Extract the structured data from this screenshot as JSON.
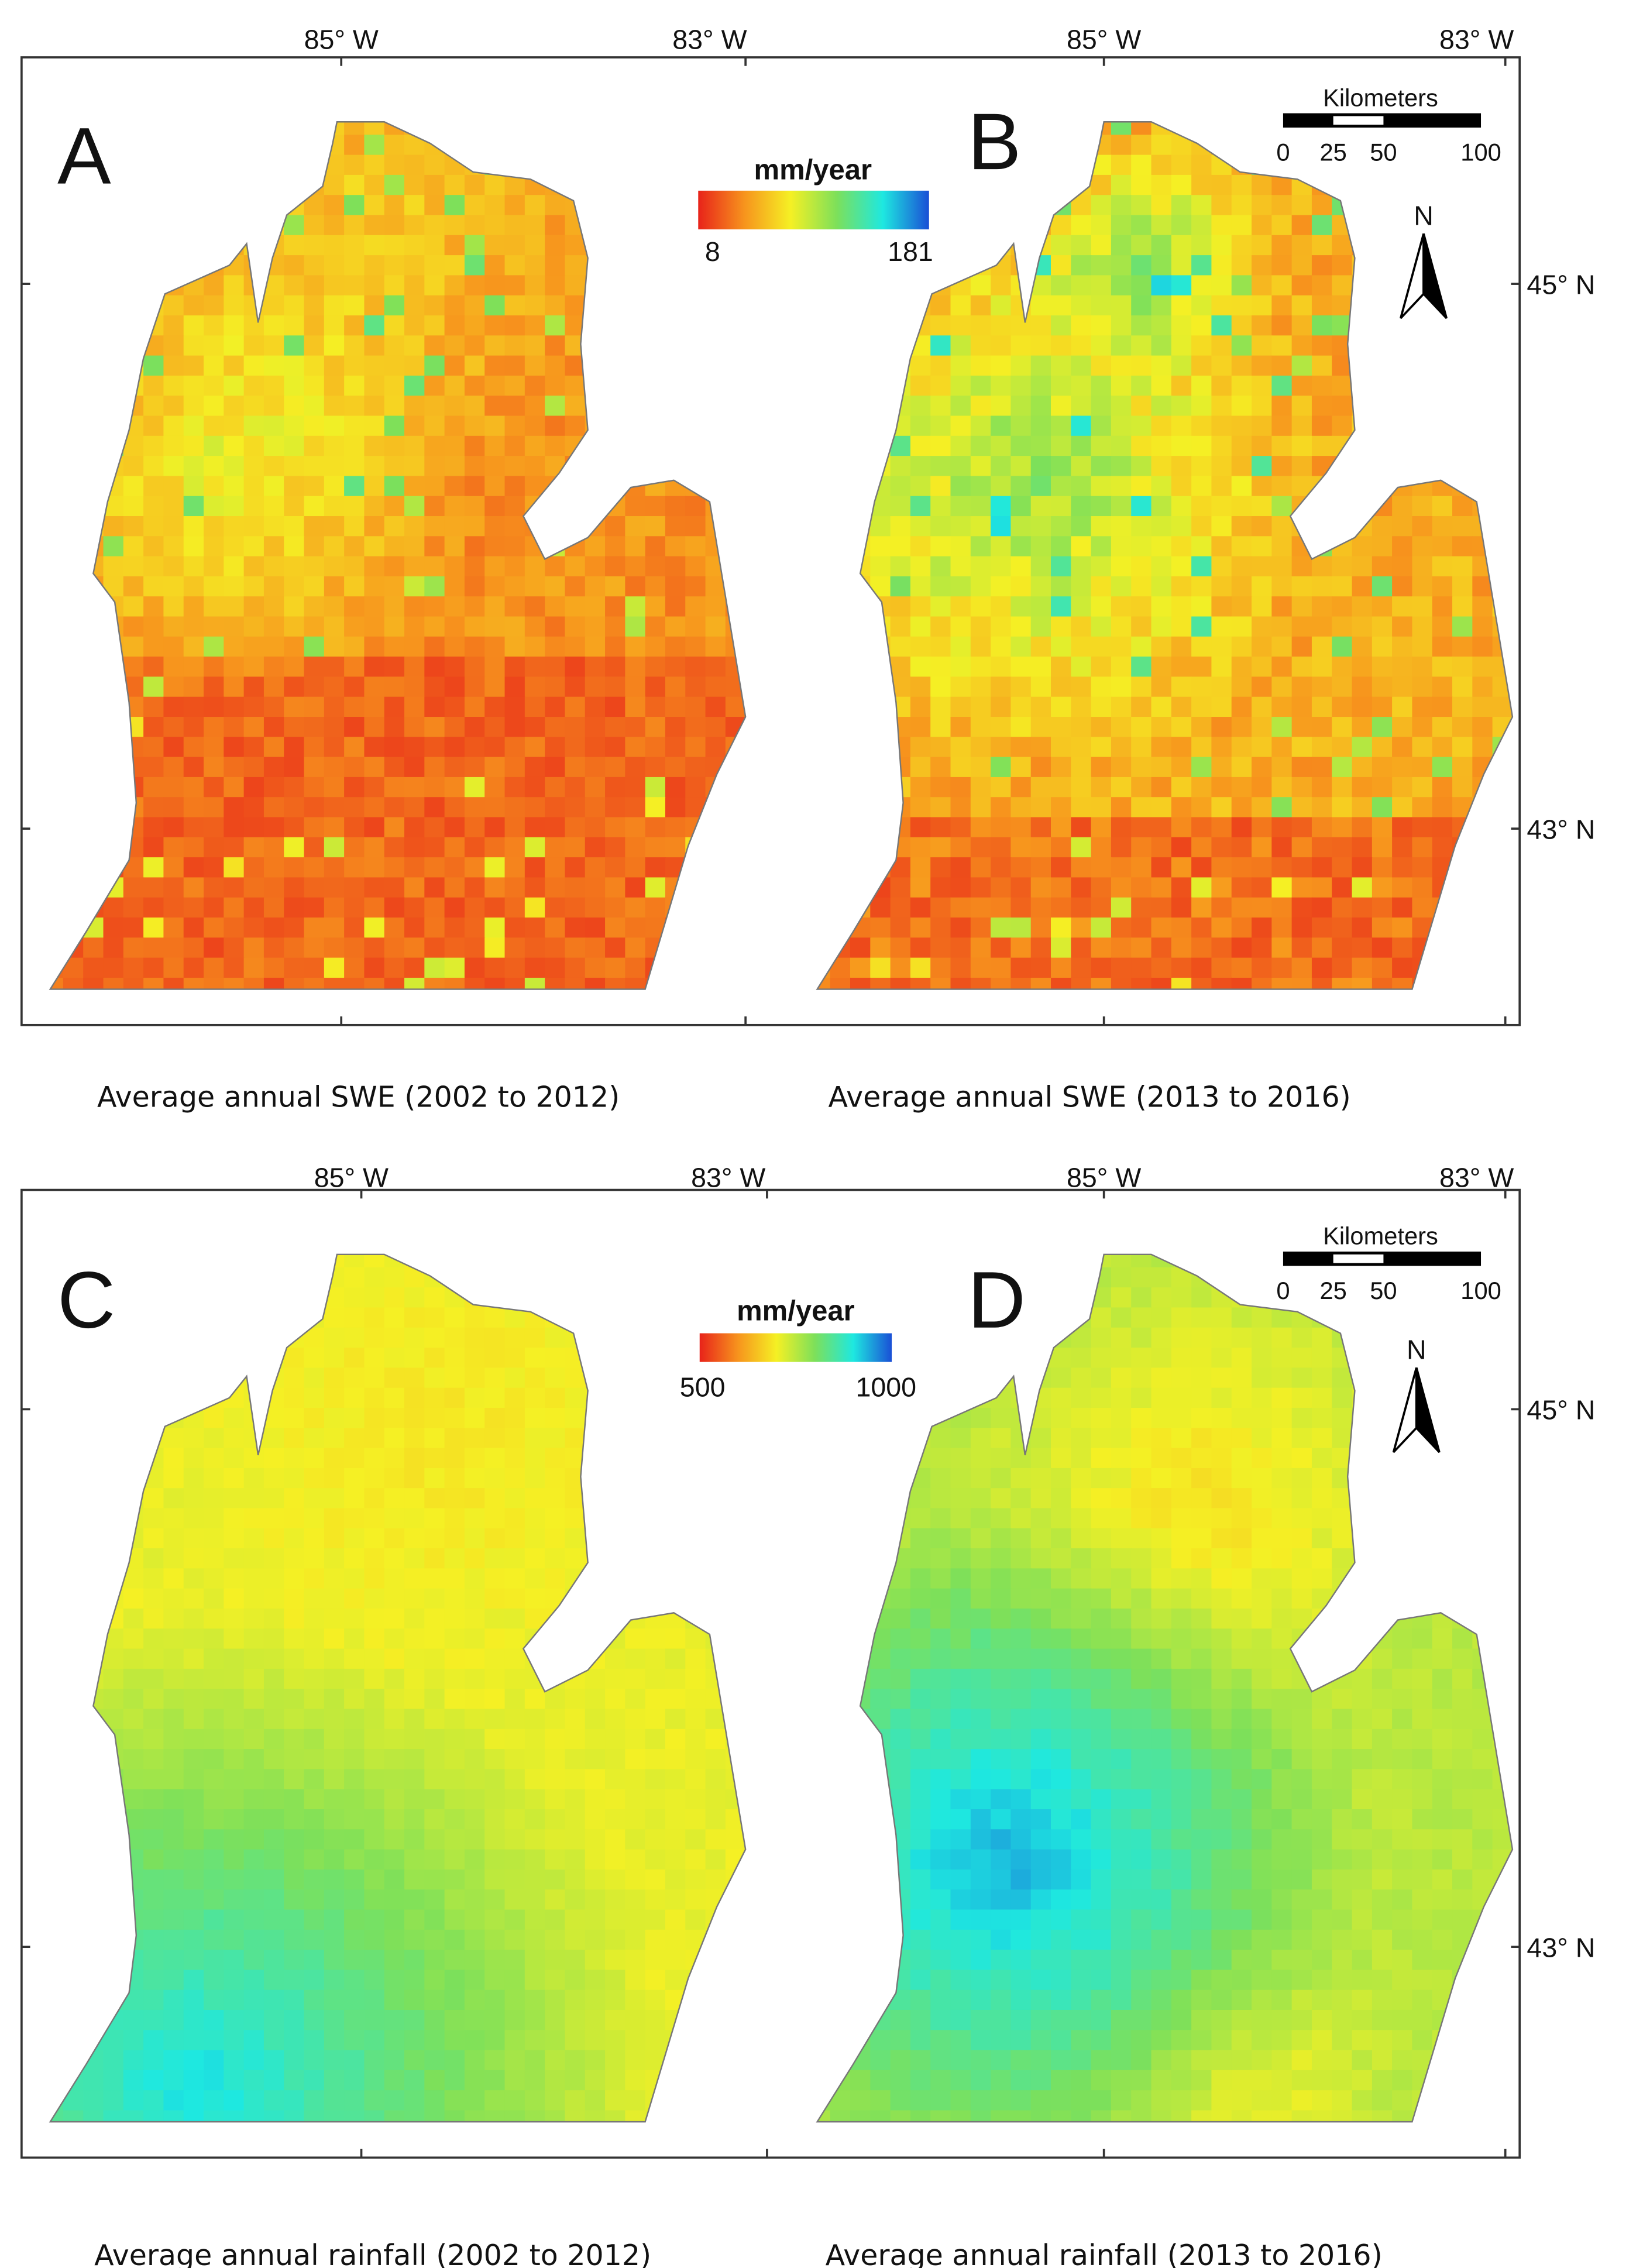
{
  "rows": [
    {
      "x_labels": [
        "85° W",
        "83° W",
        "85° W",
        "83° W"
      ],
      "y_labels": [
        "45° N",
        "43° N"
      ],
      "legend": {
        "title": "mm/year",
        "min": 8,
        "max": 181
      },
      "scale_bar": {
        "title": "Kilometers",
        "ticks": [
          0,
          25,
          50,
          100
        ]
      },
      "north": "N",
      "panels": [
        {
          "letter": "A",
          "caption": "Average annual SWE (2002 to 2012)"
        },
        {
          "letter": "B",
          "caption": "Average annual SWE (2013 to 2016)"
        }
      ]
    },
    {
      "x_labels": [
        "85° W",
        "83° W",
        "85° W",
        "83° W"
      ],
      "y_labels": [
        "45° N",
        "43° N"
      ],
      "legend": {
        "title": "mm/year",
        "min": 500,
        "max": 1000
      },
      "scale_bar": {
        "title": "Kilometers",
        "ticks": [
          0,
          25,
          50,
          100
        ]
      },
      "north": "N",
      "panels": [
        {
          "letter": "C",
          "caption": "Average annual rainfall (2002 to 2012)"
        },
        {
          "letter": "D",
          "caption": "Average annual rainfall (2013 to 2016)"
        }
      ]
    }
  ]
}
